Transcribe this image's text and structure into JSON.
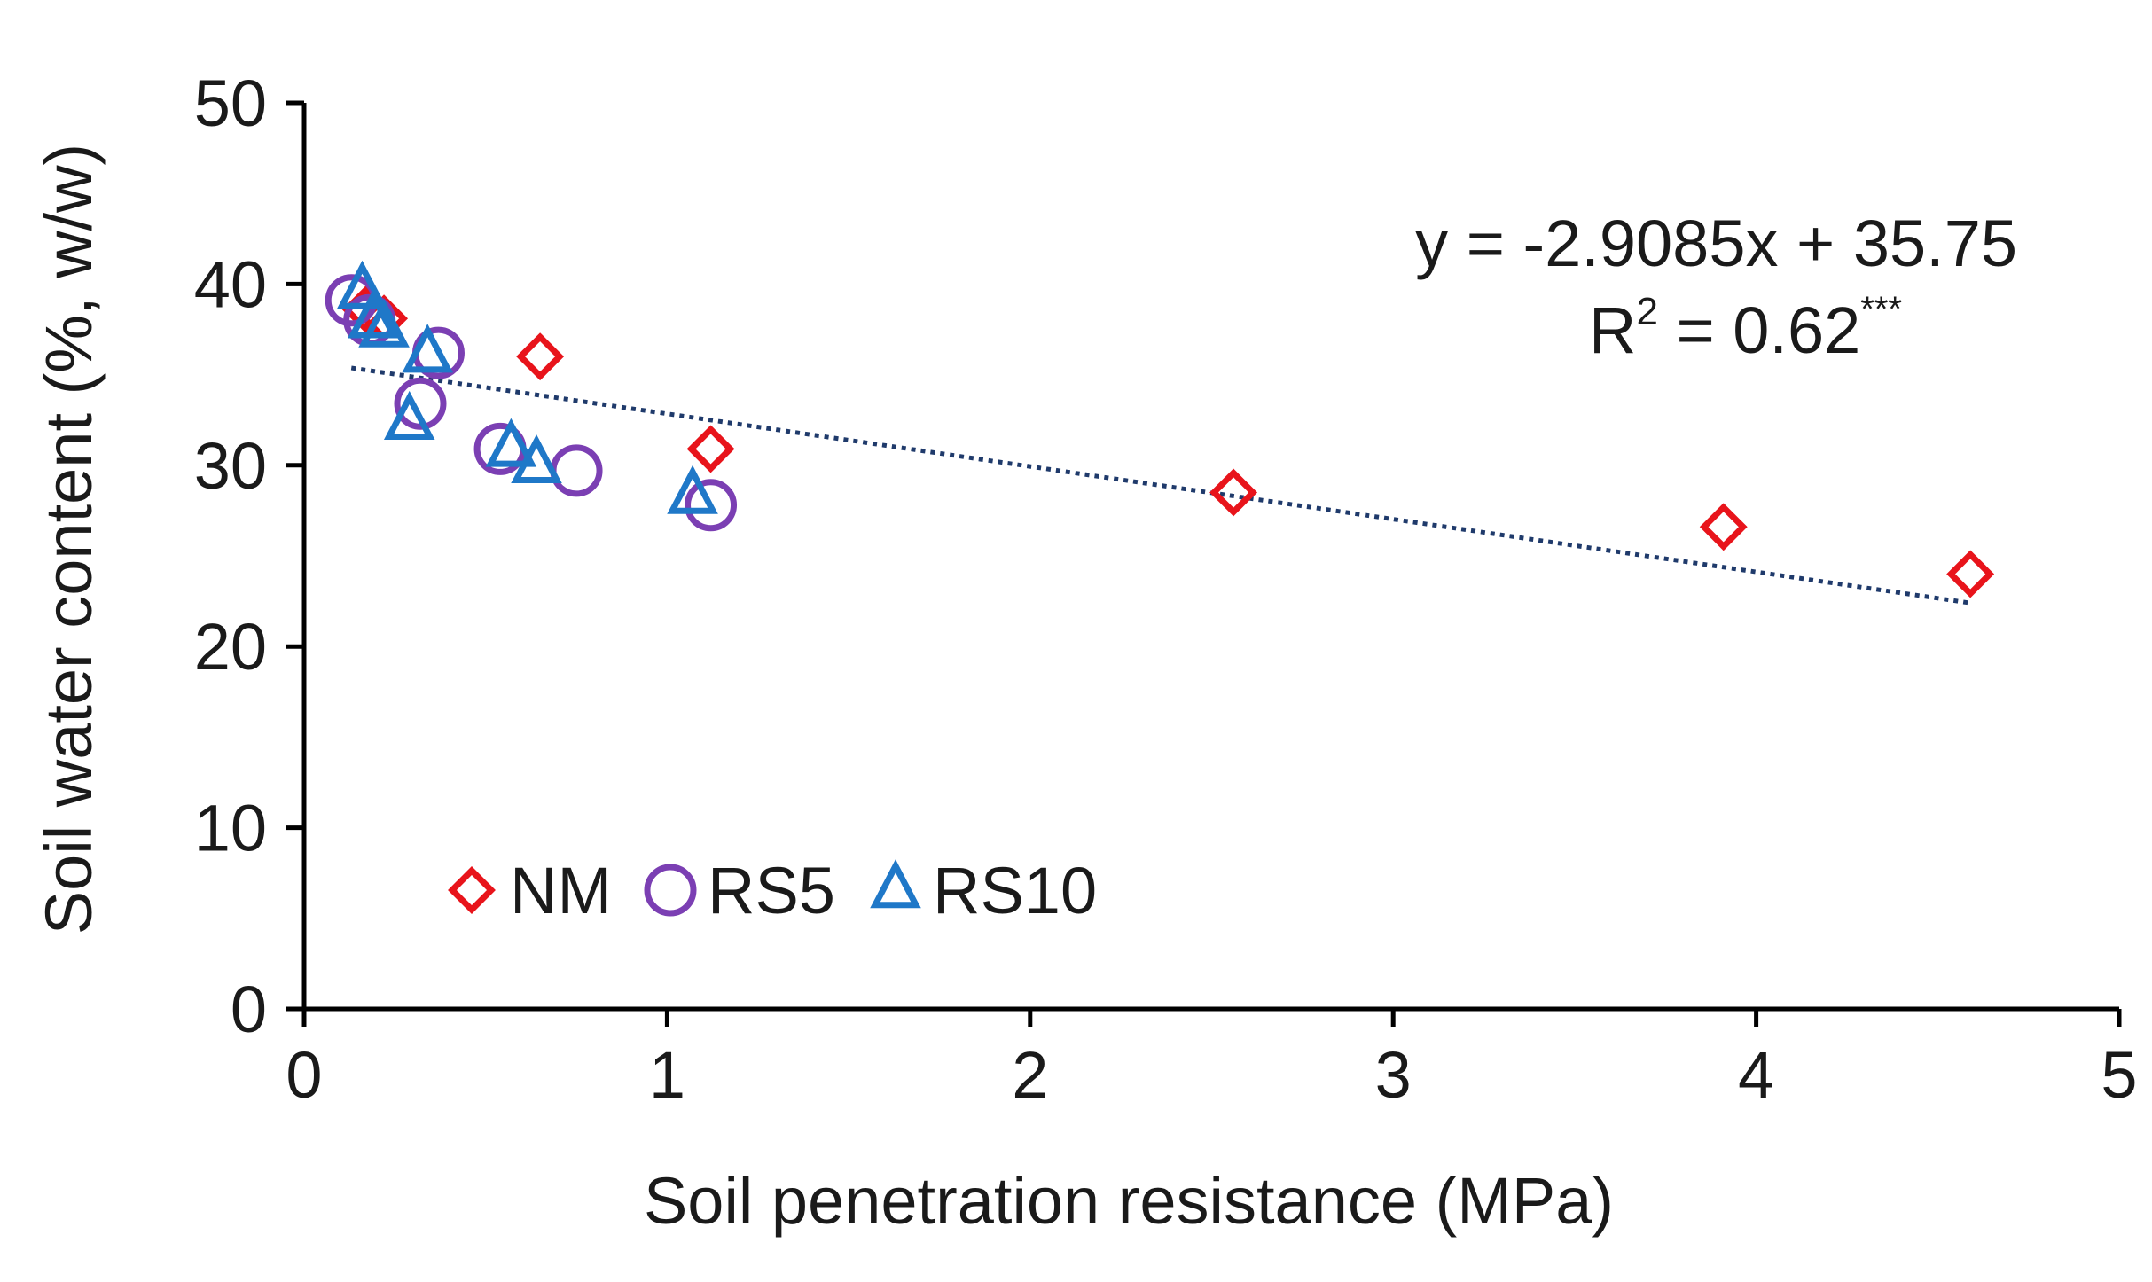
{
  "chart_data": {
    "type": "scatter",
    "title": "",
    "xlabel": "Soil penetration resistance (MPa)",
    "ylabel": "Soil water content (%, w/w)",
    "xlim": [
      0,
      5
    ],
    "ylim": [
      0,
      50
    ],
    "xticks": [
      0,
      1,
      2,
      3,
      4,
      5
    ],
    "yticks": [
      0,
      10,
      20,
      30,
      40,
      50
    ],
    "grid": false,
    "legend_position": "bottom-left",
    "series": [
      {
        "name": "NM",
        "marker": "diamond",
        "color": "#e8141b",
        "points": [
          {
            "x": 0.17,
            "y": 38.6
          },
          {
            "x": 0.22,
            "y": 38.1
          },
          {
            "x": 0.65,
            "y": 36.0
          },
          {
            "x": 1.12,
            "y": 30.9
          },
          {
            "x": 2.56,
            "y": 28.5
          },
          {
            "x": 3.91,
            "y": 26.6
          },
          {
            "x": 4.59,
            "y": 24.0
          }
        ]
      },
      {
        "name": "RS5",
        "marker": "circle",
        "color": "#7b3fb3",
        "points": [
          {
            "x": 0.13,
            "y": 39.1
          },
          {
            "x": 0.18,
            "y": 38.0
          },
          {
            "x": 0.32,
            "y": 33.4
          },
          {
            "x": 0.37,
            "y": 36.2
          },
          {
            "x": 0.54,
            "y": 30.9
          },
          {
            "x": 0.75,
            "y": 29.7
          },
          {
            "x": 1.12,
            "y": 27.8
          }
        ]
      },
      {
        "name": "RS10",
        "marker": "triangle",
        "color": "#1f78c8",
        "points": [
          {
            "x": 0.16,
            "y": 39.6
          },
          {
            "x": 0.19,
            "y": 38.0
          },
          {
            "x": 0.22,
            "y": 37.5
          },
          {
            "x": 0.29,
            "y": 32.4
          },
          {
            "x": 0.34,
            "y": 36.1
          },
          {
            "x": 0.57,
            "y": 30.9
          },
          {
            "x": 0.64,
            "y": 30.0
          },
          {
            "x": 1.07,
            "y": 28.3
          }
        ]
      }
    ],
    "trendline": {
      "slope": -2.9085,
      "intercept": 35.75,
      "x_range": [
        0.13,
        4.59
      ],
      "color": "#1f3a6b",
      "style": "dotted"
    },
    "annotations": {
      "equation": "y = -2.9085x + 35.75",
      "r2_prefix": "R",
      "r2_sup": "2",
      "r2_value": " = 0.62",
      "r2_sig": "***"
    }
  }
}
